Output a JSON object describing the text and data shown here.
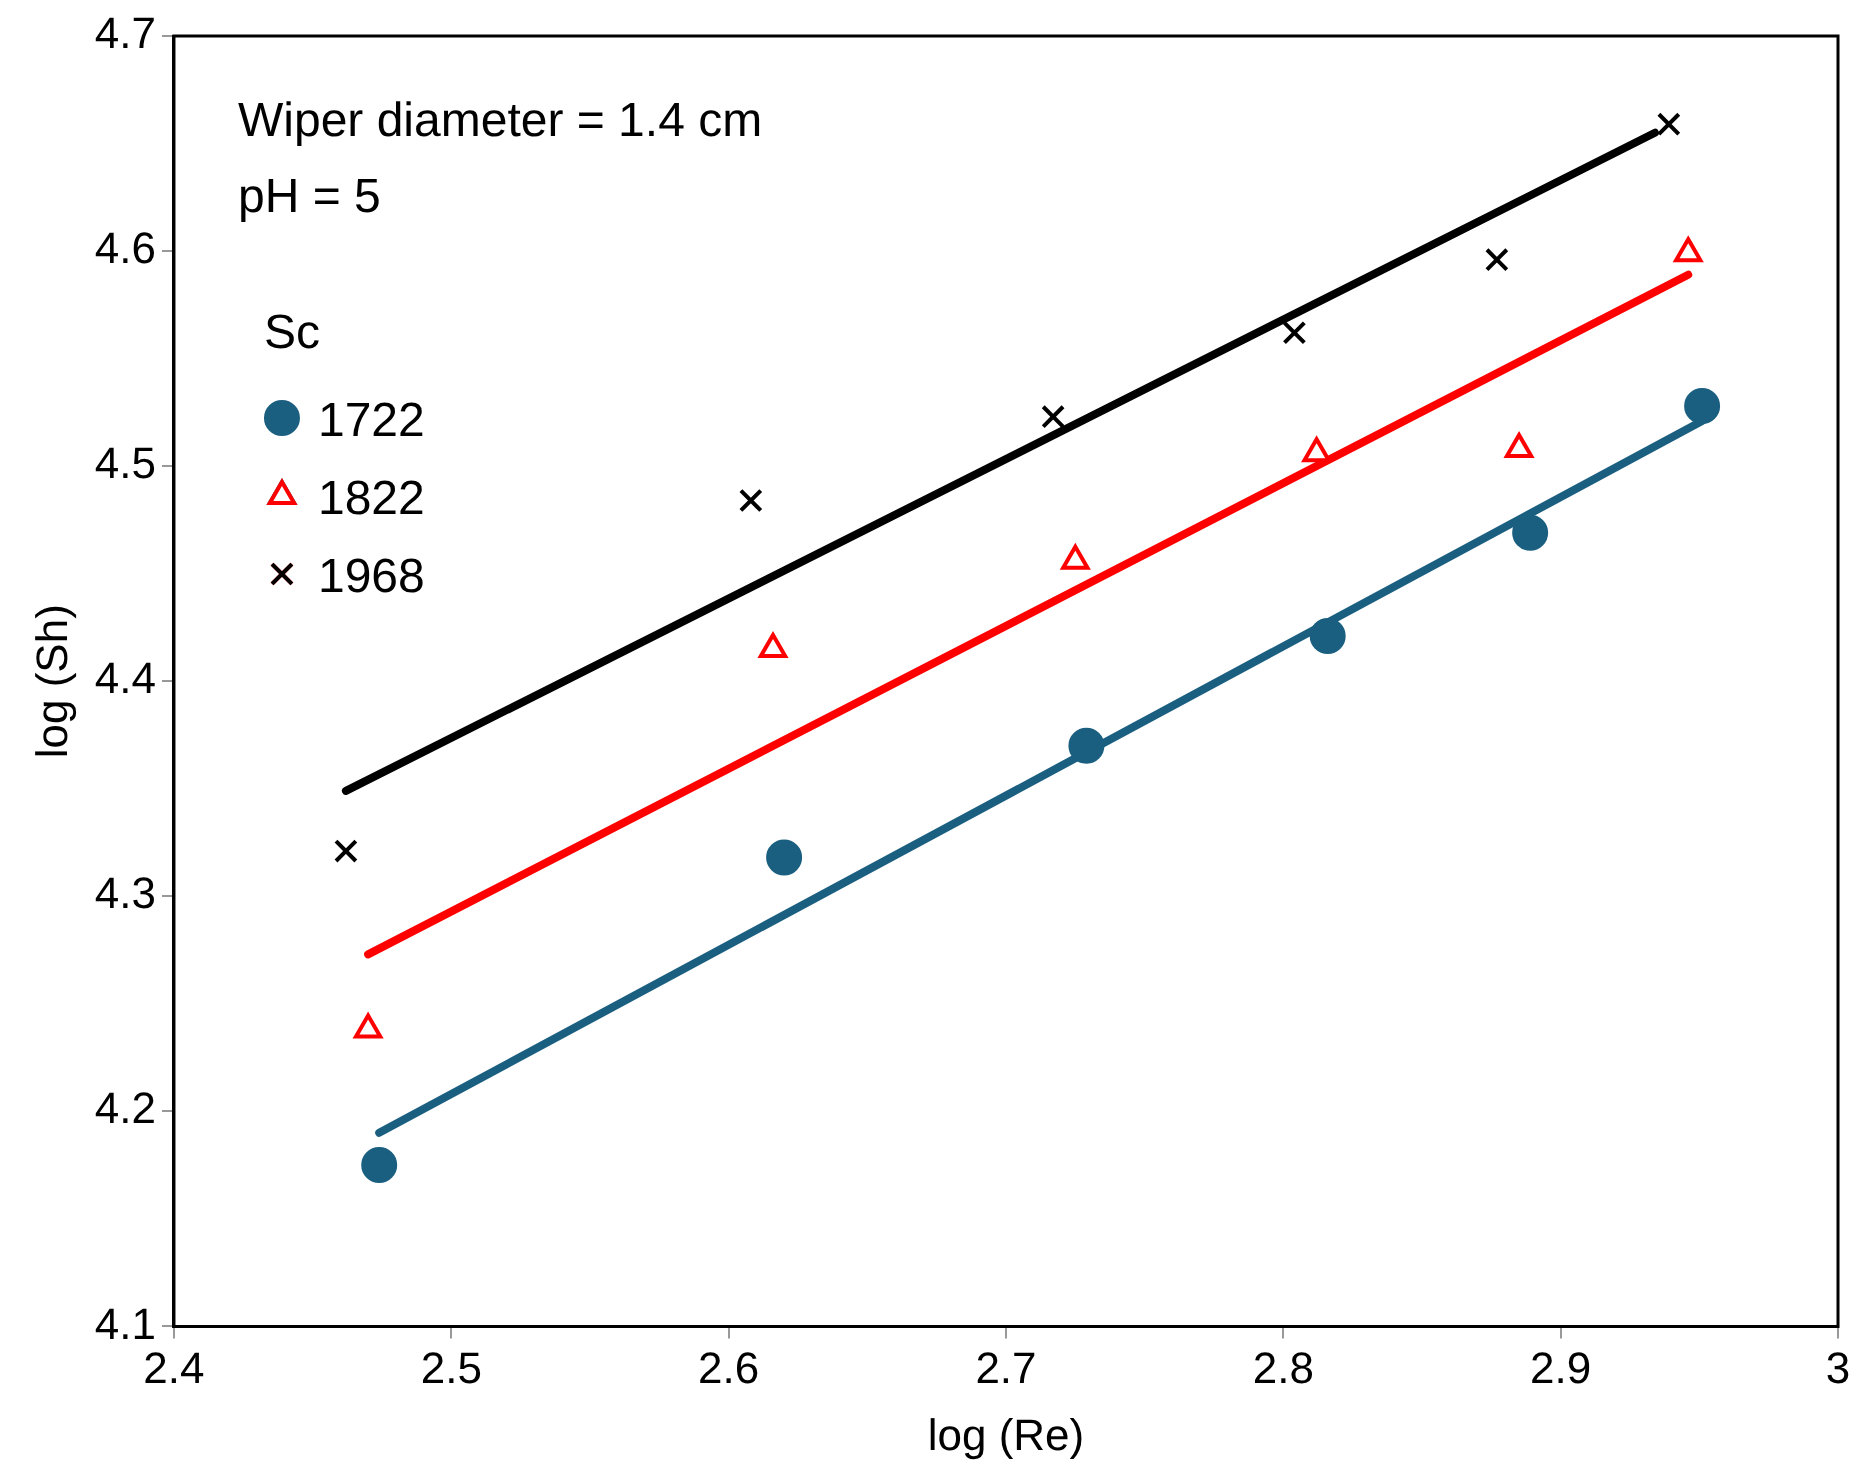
{
  "chart_data": {
    "type": "scatter",
    "xlabel": "log (Re)",
    "ylabel": "log (Sh)",
    "xlim": [
      2.4,
      3
    ],
    "ylim": [
      4.1,
      4.7
    ],
    "xticks": [
      2.4,
      2.5,
      2.6,
      2.7,
      2.8,
      2.9,
      3
    ],
    "yticks": [
      4.1,
      4.2,
      4.3,
      4.4,
      4.5,
      4.6,
      4.7
    ],
    "grid": false,
    "legend": "top left",
    "legend_title": "Sc",
    "annotations": [
      "Wiper diameter = 1.4 cm",
      "pH = 5"
    ],
    "series": [
      {
        "name": "1722",
        "color": "#1b5f80",
        "marker": "circle",
        "x": [
          2.474,
          2.62,
          2.729,
          2.816,
          2.889,
          2.951
        ],
        "values": [
          4.175,
          4.318,
          4.37,
          4.421,
          4.469,
          4.528
        ]
      },
      {
        "name": "1822",
        "color": "#ff0000",
        "marker": "triangle",
        "x": [
          2.47,
          2.616,
          2.725,
          2.812,
          2.885,
          2.946
        ],
        "values": [
          4.238,
          4.415,
          4.456,
          4.506,
          4.508,
          4.599
        ]
      },
      {
        "name": "1968",
        "color": "#000000",
        "marker": "cross",
        "x": [
          2.462,
          2.608,
          2.717,
          2.804,
          2.877,
          2.939
        ],
        "values": [
          4.321,
          4.484,
          4.523,
          4.562,
          4.596,
          4.659
        ]
      },
      {
        "type": "line",
        "color": "#1b5f80",
        "marker": "none",
        "x": [
          2.474,
          2.951
        ],
        "values": [
          4.19,
          4.521
        ]
      },
      {
        "type": "line",
        "color": "#ff0000",
        "marker": "none",
        "x": [
          2.47,
          2.946
        ],
        "values": [
          4.273,
          4.589
        ]
      },
      {
        "type": "line",
        "color": "#000000",
        "marker": "none",
        "x": [
          2.462,
          2.934
        ],
        "values": [
          4.349,
          4.655
        ]
      }
    ]
  }
}
